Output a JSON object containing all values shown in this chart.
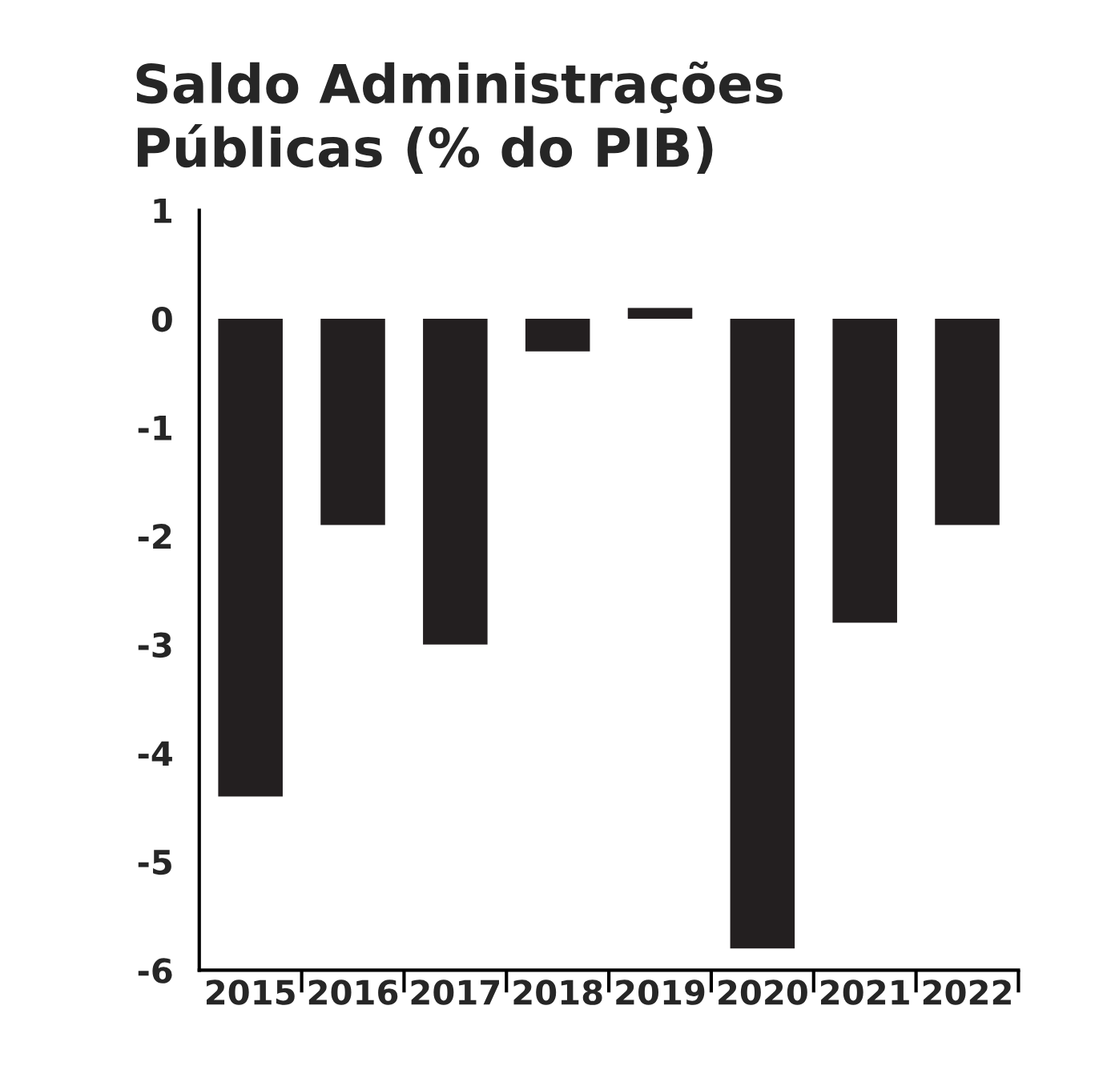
{
  "chart_data": {
    "type": "bar",
    "title": "Saldo Administrações\nPúblicas (% do PIB)",
    "categories": [
      "2015",
      "2016",
      "2017",
      "2018",
      "2019",
      "2020",
      "2021",
      "2022"
    ],
    "values": [
      -4.4,
      -1.9,
      -3.0,
      -0.3,
      0.1,
      -5.8,
      -2.8,
      -1.9
    ],
    "color": "#231f20",
    "ylim": [
      -6,
      1
    ],
    "yticks": [
      {
        "value": 1,
        "label": "1"
      },
      {
        "value": 0,
        "label": "0"
      },
      {
        "value": -1,
        "label": "-1"
      },
      {
        "value": -2,
        "label": "-2"
      },
      {
        "value": -3,
        "label": "-3"
      },
      {
        "value": -4,
        "label": "-4"
      },
      {
        "value": -5,
        "label": "-5"
      },
      {
        "value": -6,
        "label": "-6"
      }
    ],
    "grid": false,
    "legend": false
  }
}
